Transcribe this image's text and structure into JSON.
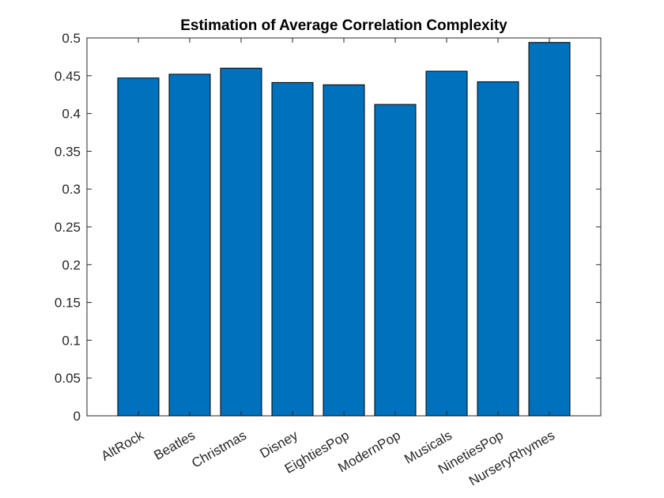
{
  "chart_data": {
    "type": "bar",
    "title": "Estimation of Average Correlation Complexity",
    "xlabel": "",
    "ylabel": "",
    "categories": [
      "AltRock",
      "Beatles",
      "Christmas",
      "Disney",
      "EightiesPop",
      "ModernPop",
      "Musicals",
      "NinetiesPop",
      "NurseryRhymes"
    ],
    "values": [
      0.447,
      0.452,
      0.46,
      0.441,
      0.438,
      0.412,
      0.456,
      0.442,
      0.494
    ],
    "ylim": [
      0,
      0.5
    ],
    "yticks": [
      "0",
      "0.05",
      "0.1",
      "0.15",
      "0.2",
      "0.25",
      "0.3",
      "0.35",
      "0.4",
      "0.45",
      "0.5"
    ],
    "grid": false,
    "bar_color": "#0072BD",
    "edge_color": "#000000"
  }
}
